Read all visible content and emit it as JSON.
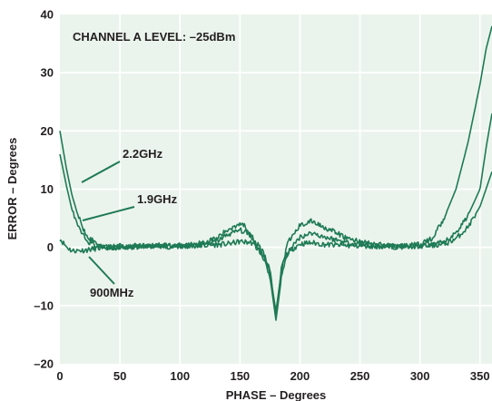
{
  "chart_data": {
    "type": "line",
    "title": "",
    "xlabel": "PHASE – Degrees",
    "ylabel": "ERROR – Degrees",
    "xlim": [
      0,
      360
    ],
    "ylim": [
      -20,
      40
    ],
    "x_ticks": [
      "0",
      "50",
      "100",
      "150",
      "200",
      "250",
      "300",
      "350"
    ],
    "y_ticks": [
      "–20",
      "–10",
      "0",
      "10",
      "20",
      "30",
      "40"
    ],
    "grid": true,
    "annotation": "CHANNEL A LEVEL: –25dBm",
    "colors": {
      "plot_bg": "#ebf4ec",
      "line": "#1e7a55",
      "grid": "#ffffff",
      "text": "#231f20"
    },
    "series": [
      {
        "name": "900MHz",
        "x": [
          0,
          5,
          10,
          20,
          30,
          40,
          50,
          60,
          80,
          100,
          120,
          140,
          150,
          160,
          170,
          175,
          180,
          185,
          190,
          200,
          210,
          220,
          240,
          260,
          280,
          300,
          320,
          330,
          340,
          350,
          355,
          360
        ],
        "y": [
          1.5,
          0.2,
          -0.6,
          -0.5,
          -0.2,
          0.0,
          0.2,
          0.0,
          0.2,
          0.1,
          0.3,
          0.6,
          1.0,
          0.8,
          -1.5,
          -4.0,
          -11.5,
          -3.0,
          -0.8,
          0.6,
          0.8,
          0.5,
          0.3,
          0.2,
          0.1,
          0.2,
          0.5,
          1.5,
          3.5,
          7.0,
          10.0,
          13.0
        ]
      },
      {
        "name": "1.9GHz",
        "x": [
          0,
          5,
          10,
          15,
          20,
          25,
          30,
          35,
          40,
          50,
          60,
          80,
          100,
          120,
          130,
          140,
          150,
          160,
          170,
          175,
          180,
          185,
          190,
          200,
          210,
          220,
          240,
          260,
          280,
          300,
          320,
          330,
          340,
          350,
          355,
          360
        ],
        "y": [
          16.0,
          11.0,
          6.5,
          3.5,
          1.8,
          0.8,
          0.3,
          0.0,
          -0.2,
          0.0,
          0.1,
          0.3,
          0.2,
          0.5,
          1.0,
          2.2,
          3.0,
          2.0,
          -2.0,
          -5.0,
          -12.5,
          -4.5,
          -1.0,
          1.8,
          2.5,
          1.8,
          0.8,
          0.3,
          0.2,
          0.2,
          0.8,
          2.5,
          5.5,
          10.0,
          17.0,
          23.0
        ]
      },
      {
        "name": "2.2GHz",
        "x": [
          0,
          5,
          10,
          15,
          20,
          25,
          30,
          35,
          40,
          50,
          60,
          80,
          100,
          120,
          130,
          140,
          150,
          155,
          160,
          170,
          175,
          180,
          185,
          190,
          200,
          210,
          220,
          240,
          260,
          280,
          300,
          310,
          320,
          330,
          340,
          350,
          355,
          360
        ],
        "y": [
          20.0,
          14.0,
          9.0,
          5.5,
          3.0,
          1.5,
          0.8,
          0.3,
          0.0,
          0.0,
          0.2,
          0.4,
          0.3,
          0.8,
          1.5,
          3.0,
          4.2,
          3.5,
          1.8,
          -1.0,
          -4.5,
          -11.0,
          -3.5,
          0.8,
          3.8,
          4.5,
          3.5,
          1.5,
          0.6,
          0.2,
          0.5,
          1.5,
          5.0,
          10.0,
          18.0,
          28.0,
          34.0,
          38.0
        ]
      }
    ],
    "series_labels": [
      {
        "series": "2.2GHz",
        "text": "2.2GHz"
      },
      {
        "series": "1.9GHz",
        "text": "1.9GHz"
      },
      {
        "series": "900MHz",
        "text": "900MHz"
      }
    ]
  }
}
